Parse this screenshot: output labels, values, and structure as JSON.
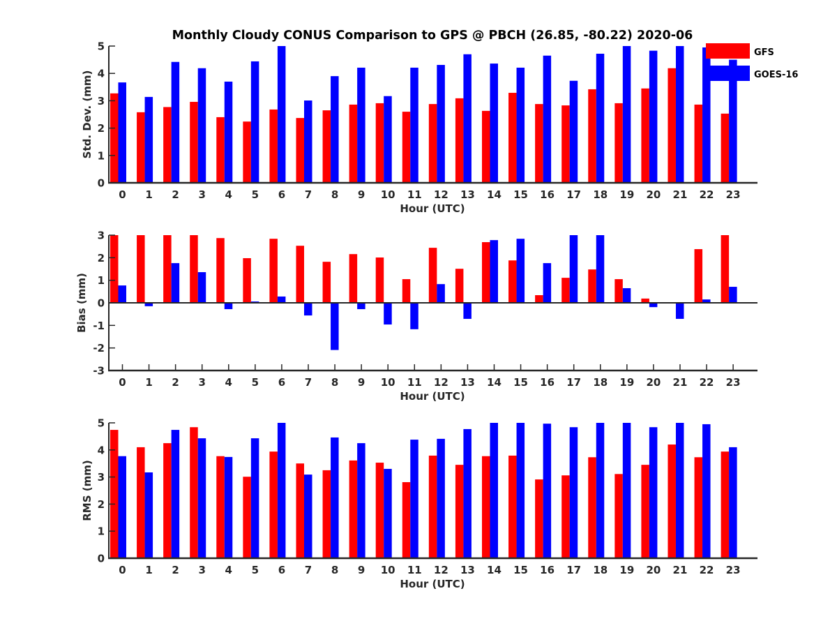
{
  "chart_data": [
    {
      "type": "bar",
      "title": "Monthly Cloudy CONUS Comparison to GPS @ PBCH (26.85, -80.22) 2020-06",
      "xlabel": "Hour (UTC)",
      "ylabel": "Std. Dev. (mm)",
      "ylim": [
        0,
        5
      ],
      "yticks": [
        "0",
        "1",
        "2",
        "3",
        "4",
        "5"
      ],
      "categories": [
        "0",
        "1",
        "2",
        "3",
        "4",
        "5",
        "6",
        "7",
        "8",
        "9",
        "10",
        "11",
        "12",
        "13",
        "14",
        "15",
        "16",
        "17",
        "18",
        "19",
        "20",
        "21",
        "22",
        "23"
      ],
      "series": [
        {
          "name": "GFS",
          "color": "#ff0000",
          "values": [
            3.27,
            2.58,
            2.77,
            2.96,
            2.4,
            2.24,
            2.68,
            2.37,
            2.65,
            2.86,
            2.91,
            2.6,
            2.88,
            3.09,
            2.63,
            3.29,
            2.88,
            2.83,
            3.42,
            2.91,
            3.45,
            4.19,
            2.86,
            2.53
          ]
        },
        {
          "name": "GOES-16",
          "color": "#0000ff",
          "values": [
            3.67,
            3.14,
            4.42,
            4.19,
            3.7,
            4.44,
            5.2,
            3.01,
            3.9,
            4.21,
            3.17,
            4.21,
            4.31,
            4.7,
            4.36,
            4.21,
            4.65,
            3.73,
            4.72,
            5.2,
            4.83,
            5.2,
            4.95,
            4.5
          ]
        }
      ],
      "legend": {
        "entries": [
          "GFS",
          "GOES-16"
        ],
        "placement": "top-right"
      },
      "grid": false
    },
    {
      "type": "bar",
      "xlabel": "Hour (UTC)",
      "ylabel": "Bias (mm)",
      "ylim": [
        -3,
        3
      ],
      "yticks": [
        "-3",
        "-2",
        "-1",
        "0",
        "1",
        "2",
        "3"
      ],
      "categories": [
        "0",
        "1",
        "2",
        "3",
        "4",
        "5",
        "6",
        "7",
        "8",
        "9",
        "10",
        "11",
        "12",
        "13",
        "14",
        "15",
        "16",
        "17",
        "18",
        "19",
        "20",
        "21",
        "22",
        "23"
      ],
      "series": [
        {
          "name": "GFS",
          "color": "#ff0000",
          "values": [
            3.2,
            3.2,
            3.2,
            3.2,
            2.87,
            1.98,
            2.84,
            2.53,
            1.82,
            2.16,
            2.01,
            1.05,
            2.44,
            1.51,
            2.69,
            1.88,
            0.34,
            1.11,
            1.48,
            1.05,
            0.19,
            0.02,
            2.38,
            3.2
          ]
        },
        {
          "name": "GOES-16",
          "color": "#0000ff",
          "values": [
            0.77,
            -0.15,
            1.76,
            1.36,
            -0.28,
            0.06,
            0.28,
            -0.56,
            -2.09,
            -0.28,
            -0.96,
            -1.17,
            0.83,
            -0.71,
            2.78,
            2.84,
            1.76,
            3.2,
            3.2,
            0.65,
            -0.19,
            -0.71,
            0.15,
            0.71
          ]
        }
      ],
      "grid": false
    },
    {
      "type": "bar",
      "xlabel": "Hour (UTC)",
      "ylabel": "RMS (mm)",
      "ylim": [
        0,
        5
      ],
      "yticks": [
        "0",
        "1",
        "2",
        "3",
        "4",
        "5"
      ],
      "categories": [
        "0",
        "1",
        "2",
        "3",
        "4",
        "5",
        "6",
        "7",
        "8",
        "9",
        "10",
        "11",
        "12",
        "13",
        "14",
        "15",
        "16",
        "17",
        "18",
        "19",
        "20",
        "21",
        "22",
        "23"
      ],
      "series": [
        {
          "name": "GFS",
          "color": "#ff0000",
          "values": [
            4.74,
            4.1,
            4.25,
            4.84,
            3.77,
            3.01,
            3.94,
            3.5,
            3.25,
            3.61,
            3.53,
            2.81,
            3.79,
            3.45,
            3.77,
            3.79,
            2.91,
            3.06,
            3.73,
            3.11,
            3.45,
            4.2,
            3.73,
            3.94
          ]
        },
        {
          "name": "GOES-16",
          "color": "#0000ff",
          "values": [
            3.77,
            3.17,
            4.74,
            4.43,
            3.74,
            4.43,
            5.2,
            3.09,
            4.46,
            4.25,
            3.3,
            4.38,
            4.41,
            4.77,
            5.2,
            5.2,
            4.97,
            4.84,
            5.2,
            5.2,
            4.84,
            5.2,
            4.95,
            4.1
          ]
        }
      ],
      "grid": false
    }
  ]
}
